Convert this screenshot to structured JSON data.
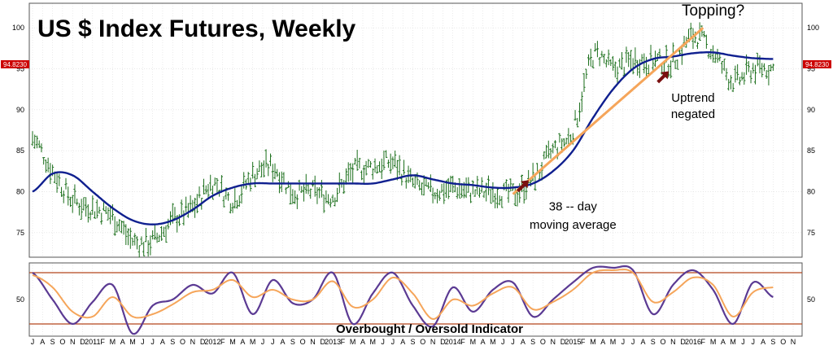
{
  "chart_data": [
    {
      "type": "line",
      "title": "US $ Index Futures, Weekly",
      "ylim": [
        72,
        103
      ],
      "yticks": [
        75,
        80,
        85,
        90,
        95,
        100
      ],
      "price_label": "94.8230",
      "colors": {
        "price": "#1a6e1a",
        "moving_average": "#0f1f8f",
        "trendline": "#f5a55a",
        "arrows": "#7a1010",
        "price_label_bg": "#cc0000"
      },
      "series": [
        {
          "key": "price",
          "x": [
            "2010-07",
            "2010-09",
            "2010-11",
            "2011-01",
            "2011-03",
            "2011-05",
            "2011-07",
            "2011-09",
            "2011-11",
            "2012-01",
            "2012-03",
            "2012-05",
            "2012-07",
            "2012-09",
            "2012-11",
            "2013-01",
            "2013-03",
            "2013-05",
            "2013-07",
            "2013-09",
            "2013-11",
            "2014-01",
            "2014-03",
            "2014-05",
            "2014-07",
            "2014-09",
            "2014-11",
            "2015-01",
            "2015-03",
            "2015-05",
            "2015-07",
            "2015-09",
            "2015-11",
            "2016-01",
            "2016-03",
            "2016-05",
            "2016-07",
            "2016-09"
          ],
          "values": [
            86.5,
            82.5,
            79,
            78,
            77,
            74,
            74,
            76.5,
            78,
            81,
            79,
            82,
            83,
            80,
            80,
            79.5,
            82.5,
            83,
            83.5,
            81,
            80,
            80.5,
            80,
            80,
            79.8,
            81.5,
            85,
            87.5,
            96.5,
            95,
            96,
            96,
            96,
            99,
            97,
            93.5,
            95,
            95
          ]
        },
        {
          "key": "moving_average",
          "x": [
            "2010-07",
            "2010-09",
            "2010-11",
            "2011-01",
            "2011-03",
            "2011-05",
            "2011-07",
            "2011-09",
            "2011-11",
            "2012-01",
            "2012-03",
            "2012-05",
            "2012-07",
            "2012-09",
            "2012-11",
            "2013-01",
            "2013-03",
            "2013-05",
            "2013-07",
            "2013-09",
            "2013-11",
            "2014-01",
            "2014-03",
            "2014-05",
            "2014-07",
            "2014-09",
            "2014-11",
            "2015-01",
            "2015-03",
            "2015-05",
            "2015-07",
            "2015-09",
            "2015-11",
            "2016-01",
            "2016-03",
            "2016-05",
            "2016-07",
            "2016-09"
          ],
          "values": [
            80,
            82.2,
            82,
            80,
            78,
            76.5,
            76,
            76.5,
            77.8,
            79.5,
            80.5,
            81,
            81,
            81,
            81,
            81,
            81,
            81,
            81.5,
            82,
            81.5,
            81,
            80.8,
            80.5,
            80.5,
            81,
            82.5,
            85,
            89,
            92.5,
            95,
            96.2,
            96.5,
            96.9,
            97,
            96.6,
            96.3,
            96.2
          ]
        }
      ],
      "trendline": {
        "from": [
          "2014-07",
          79.7
        ],
        "to": [
          "2016-02",
          100
        ]
      },
      "annotations": [
        {
          "text": "Topping?",
          "at": [
            "2016-03",
            101.5
          ]
        },
        {
          "text": "Uptrend",
          "at": [
            "2016-01",
            91
          ]
        },
        {
          "text": "negated",
          "at": [
            "2016-01",
            89
          ]
        },
        {
          "text": "38 -- day",
          "at": [
            "2015-01",
            77.7
          ]
        },
        {
          "text": "moving average",
          "at": [
            "2015-01",
            75.5
          ]
        }
      ],
      "arrows": [
        {
          "at": [
            "2015-10",
            94
          ]
        },
        {
          "at": [
            "2014-08",
            80.7
          ]
        }
      ]
    },
    {
      "type": "line",
      "title": "Overbought / Oversold Indicator",
      "ylim": [
        20,
        80
      ],
      "yticks": [
        50
      ],
      "levels": [
        72,
        30
      ],
      "colors": {
        "fast": "#5b3a93",
        "slow": "#f5a55a",
        "levels": "#b5461c"
      },
      "series": [
        {
          "key": "fast",
          "x": [
            "2010-07",
            "2010-09",
            "2010-11",
            "2011-01",
            "2011-03",
            "2011-05",
            "2011-07",
            "2011-09",
            "2011-11",
            "2012-01",
            "2012-03",
            "2012-05",
            "2012-07",
            "2012-09",
            "2012-11",
            "2013-01",
            "2013-03",
            "2013-05",
            "2013-07",
            "2013-09",
            "2013-11",
            "2014-01",
            "2014-03",
            "2014-05",
            "2014-07",
            "2014-09",
            "2014-11",
            "2015-01",
            "2015-03",
            "2015-05",
            "2015-07",
            "2015-09",
            "2015-11",
            "2016-01",
            "2016-03",
            "2016-05",
            "2016-07",
            "2016-09"
          ],
          "values": [
            72,
            50,
            30,
            48,
            62,
            22,
            45,
            50,
            62,
            55,
            72,
            38,
            66,
            47,
            50,
            72,
            30,
            55,
            72,
            45,
            28,
            60,
            40,
            58,
            64,
            36,
            50,
            64,
            76,
            76,
            74,
            38,
            62,
            74,
            58,
            30,
            64,
            52
          ]
        },
        {
          "key": "slow",
          "x": [
            "2010-07",
            "2010-09",
            "2010-11",
            "2011-01",
            "2011-03",
            "2011-05",
            "2011-07",
            "2011-09",
            "2011-11",
            "2012-01",
            "2012-03",
            "2012-05",
            "2012-07",
            "2012-09",
            "2012-11",
            "2013-01",
            "2013-03",
            "2013-05",
            "2013-07",
            "2013-09",
            "2013-11",
            "2014-01",
            "2014-03",
            "2014-05",
            "2014-07",
            "2014-09",
            "2014-11",
            "2015-01",
            "2015-03",
            "2015-05",
            "2015-07",
            "2015-09",
            "2015-11",
            "2016-01",
            "2016-03",
            "2016-05",
            "2016-07",
            "2016-09"
          ],
          "values": [
            70,
            60,
            40,
            36,
            52,
            36,
            38,
            46,
            56,
            58,
            66,
            52,
            58,
            50,
            50,
            65,
            44,
            50,
            68,
            55,
            34,
            50,
            45,
            55,
            60,
            42,
            48,
            58,
            72,
            74,
            72,
            48,
            56,
            68,
            62,
            36,
            56,
            60
          ]
        }
      ]
    }
  ],
  "x_axis": {
    "ticks": [
      "J",
      "A",
      "S",
      "O",
      "N",
      "D",
      "2011",
      "F",
      "M",
      "A",
      "M",
      "J",
      "J",
      "A",
      "S",
      "O",
      "N",
      "D",
      "2012",
      "F",
      "M",
      "A",
      "M",
      "J",
      "J",
      "A",
      "S",
      "O",
      "N",
      "D",
      "2013",
      "F",
      "M",
      "A",
      "M",
      "J",
      "J",
      "A",
      "S",
      "O",
      "N",
      "D",
      "2014",
      "F",
      "M",
      "A",
      "M",
      "J",
      "J",
      "A",
      "S",
      "O",
      "N",
      "D",
      "2015",
      "F",
      "M",
      "A",
      "M",
      "J",
      "J",
      "A",
      "S",
      "O",
      "N",
      "D",
      "2016",
      "F",
      "M",
      "A",
      "M",
      "J",
      "J",
      "A",
      "S",
      "O",
      "N"
    ]
  }
}
